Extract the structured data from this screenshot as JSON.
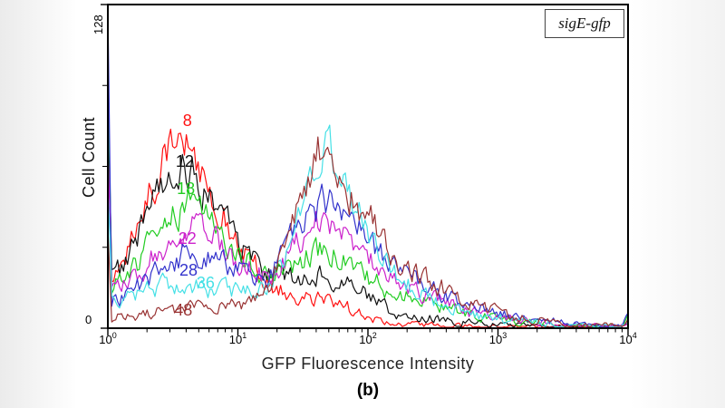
{
  "caption": "(b)",
  "legend": {
    "text": "sigE-gfp"
  },
  "chart_data": {
    "type": "line",
    "subtype": "flow-cytometry-overlay-histogram",
    "title": "",
    "xlabel": "GFP Fluorescence Intensity",
    "ylabel": "Cell Count",
    "x_scale": "log10",
    "x_range": [
      1,
      10000
    ],
    "x_tick_exponents": [
      0,
      1,
      2,
      3,
      4
    ],
    "ylim": [
      0,
      128
    ],
    "y_axis": {
      "max_label": "128",
      "min_label": "0",
      "minor_ticks": [
        32,
        64,
        96
      ]
    },
    "grid": false,
    "legend_position": "top-right",
    "series": [
      {
        "label": "8",
        "color": "#ff1111",
        "label_pos": {
          "x_pct": 15.3,
          "y_pct": 35.9
        },
        "envelope": [
          [
            0,
            80
          ],
          [
            0.03,
            22
          ],
          [
            0.15,
            30
          ],
          [
            0.3,
            50
          ],
          [
            0.45,
            68
          ],
          [
            0.55,
            79
          ],
          [
            0.7,
            62
          ],
          [
            0.85,
            48
          ],
          [
            1.0,
            34
          ],
          [
            1.15,
            24
          ],
          [
            1.24,
            18
          ],
          [
            1.4,
            13
          ],
          [
            1.55,
            12
          ],
          [
            1.7,
            11
          ],
          [
            1.9,
            7
          ],
          [
            2.1,
            3
          ],
          [
            2.3,
            1.5
          ],
          [
            2.6,
            1
          ],
          [
            3.0,
            0.6
          ],
          [
            3.95,
            0.5
          ],
          [
            4,
            2
          ]
        ]
      },
      {
        "label": "12",
        "color": "#111111",
        "label_pos": {
          "x_pct": 14.8,
          "y_pct": 48.5
        },
        "envelope": [
          [
            0,
            88
          ],
          [
            0.03,
            20
          ],
          [
            0.15,
            26
          ],
          [
            0.3,
            44
          ],
          [
            0.45,
            58
          ],
          [
            0.58,
            65
          ],
          [
            0.72,
            56
          ],
          [
            0.88,
            44
          ],
          [
            1.05,
            30
          ],
          [
            1.2,
            21
          ],
          [
            1.35,
            19
          ],
          [
            1.5,
            20
          ],
          [
            1.62,
            21
          ],
          [
            1.75,
            19
          ],
          [
            1.95,
            14
          ],
          [
            2.2,
            6
          ],
          [
            2.5,
            4
          ],
          [
            2.8,
            2
          ],
          [
            3.2,
            1.2
          ],
          [
            3.95,
            0.8
          ],
          [
            4,
            3
          ]
        ]
      },
      {
        "label": "18",
        "color": "#22cc22",
        "label_pos": {
          "x_pct": 15.0,
          "y_pct": 56.9
        },
        "envelope": [
          [
            0,
            100
          ],
          [
            0.03,
            16
          ],
          [
            0.2,
            24
          ],
          [
            0.4,
            38
          ],
          [
            0.62,
            50
          ],
          [
            0.8,
            42
          ],
          [
            1.0,
            29
          ],
          [
            1.2,
            20
          ],
          [
            1.35,
            22
          ],
          [
            1.5,
            27
          ],
          [
            1.65,
            32
          ],
          [
            1.8,
            28
          ],
          [
            1.95,
            22
          ],
          [
            2.2,
            14
          ],
          [
            2.5,
            9
          ],
          [
            2.8,
            5
          ],
          [
            3.2,
            2.5
          ],
          [
            3.6,
            1
          ],
          [
            3.95,
            0.8
          ],
          [
            4,
            4
          ]
        ]
      },
      {
        "label": "22",
        "color": "#cc22cc",
        "label_pos": {
          "x_pct": 15.3,
          "y_pct": 72.3
        },
        "envelope": [
          [
            0,
            70
          ],
          [
            0.03,
            13
          ],
          [
            0.2,
            20
          ],
          [
            0.4,
            31
          ],
          [
            0.63,
            40
          ],
          [
            0.85,
            33
          ],
          [
            1.05,
            25
          ],
          [
            1.24,
            20
          ],
          [
            1.45,
            33
          ],
          [
            1.67,
            45
          ],
          [
            1.85,
            37
          ],
          [
            2.0,
            29
          ],
          [
            2.2,
            19
          ],
          [
            2.5,
            12
          ],
          [
            2.8,
            6
          ],
          [
            3.2,
            3
          ],
          [
            3.6,
            1.2
          ],
          [
            3.95,
            0.8
          ],
          [
            4,
            3
          ]
        ]
      },
      {
        "label": "28",
        "color": "#3333cc",
        "label_pos": {
          "x_pct": 15.5,
          "y_pct": 82.1
        },
        "envelope": [
          [
            0,
            127
          ],
          [
            0.03,
            10
          ],
          [
            0.2,
            15
          ],
          [
            0.45,
            25
          ],
          [
            0.65,
            31
          ],
          [
            0.9,
            26
          ],
          [
            1.1,
            21
          ],
          [
            1.24,
            20
          ],
          [
            1.45,
            38
          ],
          [
            1.68,
            51
          ],
          [
            1.88,
            41
          ],
          [
            2.05,
            32
          ],
          [
            2.2,
            24
          ],
          [
            2.5,
            16
          ],
          [
            2.8,
            8
          ],
          [
            3.2,
            4
          ],
          [
            3.6,
            1.5
          ],
          [
            3.95,
            1
          ],
          [
            4,
            4
          ]
        ]
      },
      {
        "label": "36",
        "color": "#45e0e6",
        "label_pos": {
          "x_pct": 18.8,
          "y_pct": 86.0
        },
        "envelope": [
          [
            0,
            55
          ],
          [
            0.03,
            10
          ],
          [
            0.25,
            14
          ],
          [
            0.5,
            18
          ],
          [
            0.75,
            16
          ],
          [
            1.0,
            14
          ],
          [
            1.2,
            16
          ],
          [
            1.35,
            25
          ],
          [
            1.5,
            52
          ],
          [
            1.68,
            76
          ],
          [
            1.85,
            52
          ],
          [
            2.0,
            38
          ],
          [
            2.2,
            21
          ],
          [
            2.5,
            11
          ],
          [
            2.8,
            5
          ],
          [
            3.2,
            2.5
          ],
          [
            3.6,
            1
          ],
          [
            3.95,
            0.8
          ],
          [
            4,
            3
          ]
        ]
      },
      {
        "label": "48",
        "color": "#993333",
        "label_pos": {
          "x_pct": 14.5,
          "y_pct": 94.4
        },
        "envelope": [
          [
            0,
            40
          ],
          [
            0.03,
            4
          ],
          [
            0.3,
            6
          ],
          [
            0.6,
            8
          ],
          [
            0.9,
            8
          ],
          [
            1.1,
            10
          ],
          [
            1.24,
            15
          ],
          [
            1.4,
            38
          ],
          [
            1.62,
            70
          ],
          [
            1.8,
            55
          ],
          [
            2.0,
            45
          ],
          [
            2.2,
            27
          ],
          [
            2.5,
            18
          ],
          [
            2.8,
            9
          ],
          [
            3.1,
            5
          ],
          [
            3.5,
            2
          ],
          [
            3.95,
            1
          ],
          [
            4,
            3
          ]
        ]
      }
    ]
  }
}
